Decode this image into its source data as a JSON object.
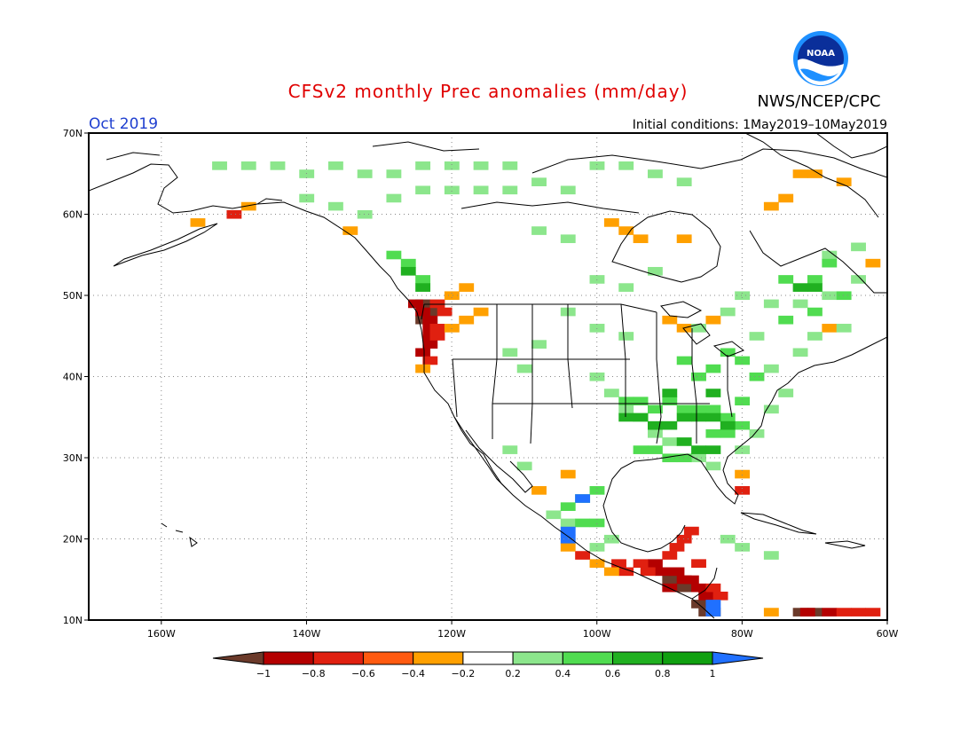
{
  "title": "CFSv2 monthly Prec anomalies (mm/day)",
  "month": "Oct 2019",
  "init": "Initial conditions: 1May2019–10May2019",
  "agency": "NWS/NCEP/CPC",
  "logo_text": "NOAA",
  "colors": {
    "title": "#e00000",
    "month": "#2040d0",
    "text": "#000000",
    "grid": "#888888",
    "land": "#000000"
  },
  "map": {
    "lon_range": [
      -170,
      -60
    ],
    "lat_range": [
      10,
      70
    ],
    "lat_ticks": [
      "10N",
      "20N",
      "30N",
      "40N",
      "50N",
      "60N",
      "70N"
    ],
    "lon_ticks": [
      "160W",
      "140W",
      "120W",
      "100W",
      "80W",
      "60W"
    ],
    "lat_values": [
      10,
      20,
      30,
      40,
      50,
      60,
      70
    ],
    "lon_values": [
      -160,
      -140,
      -120,
      -100,
      -80,
      -60
    ],
    "grid": "dotted"
  },
  "legend": {
    "labels": [
      "−1",
      "−0.8",
      "−0.6",
      "−0.4",
      "−0.2",
      "0.2",
      "0.4",
      "0.6",
      "0.8",
      "1"
    ],
    "colors": [
      "#6b3a2a",
      "#b40000",
      "#e02010",
      "#ff5a10",
      "#ffa000",
      "#ffffff",
      "#8ce68c",
      "#50dc50",
      "#20b020",
      "#10a010",
      "#2070ff"
    ]
  },
  "anomalies": [
    {
      "category": "dry-extreme",
      "color": "#6b3a2a",
      "value": -1.0,
      "cells": [
        [
          -124,
          49
        ],
        [
          -123,
          48
        ],
        [
          -124,
          47
        ],
        [
          -90,
          15
        ],
        [
          -88,
          14
        ],
        [
          -86,
          12
        ],
        [
          -85,
          11
        ],
        [
          -72,
          11
        ],
        [
          -70,
          11
        ]
      ]
    },
    {
      "category": "dry-strong",
      "color": "#b40000",
      "cells": [
        [
          -125,
          49
        ],
        [
          -124,
          48
        ],
        [
          -123,
          47
        ],
        [
          -123,
          46
        ],
        [
          -123,
          45
        ],
        [
          -123,
          44
        ],
        [
          -124,
          43
        ],
        [
          -92,
          17
        ],
        [
          -91,
          16
        ],
        [
          -89,
          16
        ],
        [
          -88,
          15
        ],
        [
          -87,
          15
        ],
        [
          -86,
          14
        ],
        [
          -85,
          13
        ],
        [
          -90,
          14
        ],
        [
          -71,
          11
        ],
        [
          -68,
          11
        ]
      ]
    },
    {
      "category": "dry-moderate",
      "color": "#e02010",
      "cells": [
        [
          -122,
          49
        ],
        [
          -121,
          48
        ],
        [
          -122,
          46
        ],
        [
          -122,
          45
        ],
        [
          -123,
          42
        ],
        [
          -150,
          60
        ],
        [
          -97,
          17
        ],
        [
          -96,
          16
        ],
        [
          -94,
          17
        ],
        [
          -93,
          16
        ],
        [
          -90,
          18
        ],
        [
          -89,
          19
        ],
        [
          -88,
          20
        ],
        [
          -87,
          21
        ],
        [
          -86,
          17
        ],
        [
          -84,
          14
        ],
        [
          -83,
          13
        ],
        [
          -102,
          18
        ],
        [
          -80,
          26
        ],
        [
          -66,
          11
        ],
        [
          -64,
          11
        ],
        [
          -62,
          11
        ]
      ]
    },
    {
      "category": "dry-weak",
      "color": "#ffa000",
      "cells": [
        [
          -155,
          59
        ],
        [
          -148,
          61
        ],
        [
          -134,
          58
        ],
        [
          -120,
          50
        ],
        [
          -118,
          51
        ],
        [
          -116,
          48
        ],
        [
          -118,
          47
        ],
        [
          -120,
          46
        ],
        [
          -124,
          41
        ],
        [
          -98,
          59
        ],
        [
          -96,
          58
        ],
        [
          -94,
          57
        ],
        [
          -88,
          57
        ],
        [
          -90,
          47
        ],
        [
          -88,
          46
        ],
        [
          -84,
          47
        ],
        [
          -76,
          61
        ],
        [
          -74,
          62
        ],
        [
          -72,
          65
        ],
        [
          -70,
          65
        ],
        [
          -66,
          64
        ],
        [
          -62,
          54
        ],
        [
          -68,
          46
        ],
        [
          -104,
          28
        ],
        [
          -108,
          26
        ],
        [
          -104,
          19
        ],
        [
          -100,
          17
        ],
        [
          -98,
          16
        ],
        [
          -80,
          28
        ],
        [
          -84,
          11
        ],
        [
          -76,
          11
        ]
      ]
    },
    {
      "category": "wet-weak",
      "color": "#8ce68c",
      "cells": [
        [
          -152,
          66
        ],
        [
          -148,
          66
        ],
        [
          -144,
          66
        ],
        [
          -140,
          65
        ],
        [
          -136,
          66
        ],
        [
          -132,
          65
        ],
        [
          -128,
          65
        ],
        [
          -124,
          66
        ],
        [
          -120,
          66
        ],
        [
          -116,
          66
        ],
        [
          -112,
          66
        ],
        [
          -108,
          64
        ],
        [
          -104,
          63
        ],
        [
          -100,
          66
        ],
        [
          -96,
          66
        ],
        [
          -92,
          65
        ],
        [
          -88,
          64
        ],
        [
          -140,
          62
        ],
        [
          -136,
          61
        ],
        [
          -132,
          60
        ],
        [
          -128,
          62
        ],
        [
          -124,
          63
        ],
        [
          -120,
          63
        ],
        [
          -116,
          63
        ],
        [
          -112,
          63
        ],
        [
          -108,
          58
        ],
        [
          -104,
          57
        ],
        [
          -100,
          52
        ],
        [
          -96,
          51
        ],
        [
          -92,
          53
        ],
        [
          -104,
          48
        ],
        [
          -100,
          46
        ],
        [
          -96,
          45
        ],
        [
          -108,
          44
        ],
        [
          -110,
          41
        ],
        [
          -112,
          43
        ],
        [
          -100,
          40
        ],
        [
          -98,
          38
        ],
        [
          -96,
          36
        ],
        [
          -94,
          35
        ],
        [
          -92,
          33
        ],
        [
          -90,
          32
        ],
        [
          -86,
          30
        ],
        [
          -84,
          29
        ],
        [
          -80,
          31
        ],
        [
          -78,
          33
        ],
        [
          -76,
          36
        ],
        [
          -74,
          38
        ],
        [
          -76,
          41
        ],
        [
          -72,
          43
        ],
        [
          -70,
          45
        ],
        [
          -66,
          46
        ],
        [
          -78,
          45
        ],
        [
          -82,
          48
        ],
        [
          -86,
          46
        ],
        [
          -80,
          50
        ],
        [
          -76,
          49
        ],
        [
          -72,
          49
        ],
        [
          -68,
          50
        ],
        [
          -64,
          52
        ],
        [
          -68,
          55
        ],
        [
          -64,
          56
        ],
        [
          -106,
          23
        ],
        [
          -104,
          22
        ],
        [
          -100,
          19
        ],
        [
          -98,
          20
        ],
        [
          -82,
          20
        ],
        [
          -80,
          19
        ],
        [
          -76,
          18
        ],
        [
          -112,
          31
        ],
        [
          -110,
          29
        ]
      ]
    },
    {
      "category": "wet-moderate",
      "color": "#50dc50",
      "cells": [
        [
          -128,
          55
        ],
        [
          -126,
          54
        ],
        [
          -124,
          52
        ],
        [
          -96,
          37
        ],
        [
          -94,
          37
        ],
        [
          -92,
          36
        ],
        [
          -90,
          37
        ],
        [
          -88,
          36
        ],
        [
          -86,
          36
        ],
        [
          -84,
          36
        ],
        [
          -82,
          35
        ],
        [
          -80,
          37
        ],
        [
          -94,
          31
        ],
        [
          -92,
          31
        ],
        [
          -90,
          30
        ],
        [
          -88,
          30
        ],
        [
          -84,
          33
        ],
        [
          -82,
          33
        ],
        [
          -80,
          34
        ],
        [
          -78,
          40
        ],
        [
          -80,
          42
        ],
        [
          -82,
          43
        ],
        [
          -84,
          41
        ],
        [
          -86,
          40
        ],
        [
          -88,
          42
        ],
        [
          -74,
          47
        ],
        [
          -70,
          48
        ],
        [
          -66,
          50
        ],
        [
          -74,
          52
        ],
        [
          -70,
          52
        ],
        [
          -68,
          54
        ],
        [
          -102,
          22
        ],
        [
          -100,
          22
        ],
        [
          -104,
          24
        ],
        [
          -102,
          25
        ],
        [
          -100,
          26
        ]
      ]
    },
    {
      "category": "wet-strong",
      "color": "#20b020",
      "cells": [
        [
          -126,
          53
        ],
        [
          -124,
          51
        ],
        [
          -96,
          35
        ],
        [
          -94,
          35
        ],
        [
          -92,
          34
        ],
        [
          -90,
          34
        ],
        [
          -88,
          35
        ],
        [
          -86,
          35
        ],
        [
          -84,
          35
        ],
        [
          -82,
          34
        ],
        [
          -88,
          32
        ],
        [
          -86,
          31
        ],
        [
          -84,
          31
        ],
        [
          -90,
          38
        ],
        [
          -84,
          38
        ],
        [
          -72,
          51
        ],
        [
          -70,
          51
        ]
      ]
    },
    {
      "category": "wet-extreme",
      "color": "#2070ff",
      "value": 1.0,
      "cells": [
        [
          -102,
          25
        ],
        [
          -104,
          21
        ],
        [
          -104,
          20
        ],
        [
          -84,
          12
        ],
        [
          -84,
          11
        ]
      ]
    }
  ]
}
